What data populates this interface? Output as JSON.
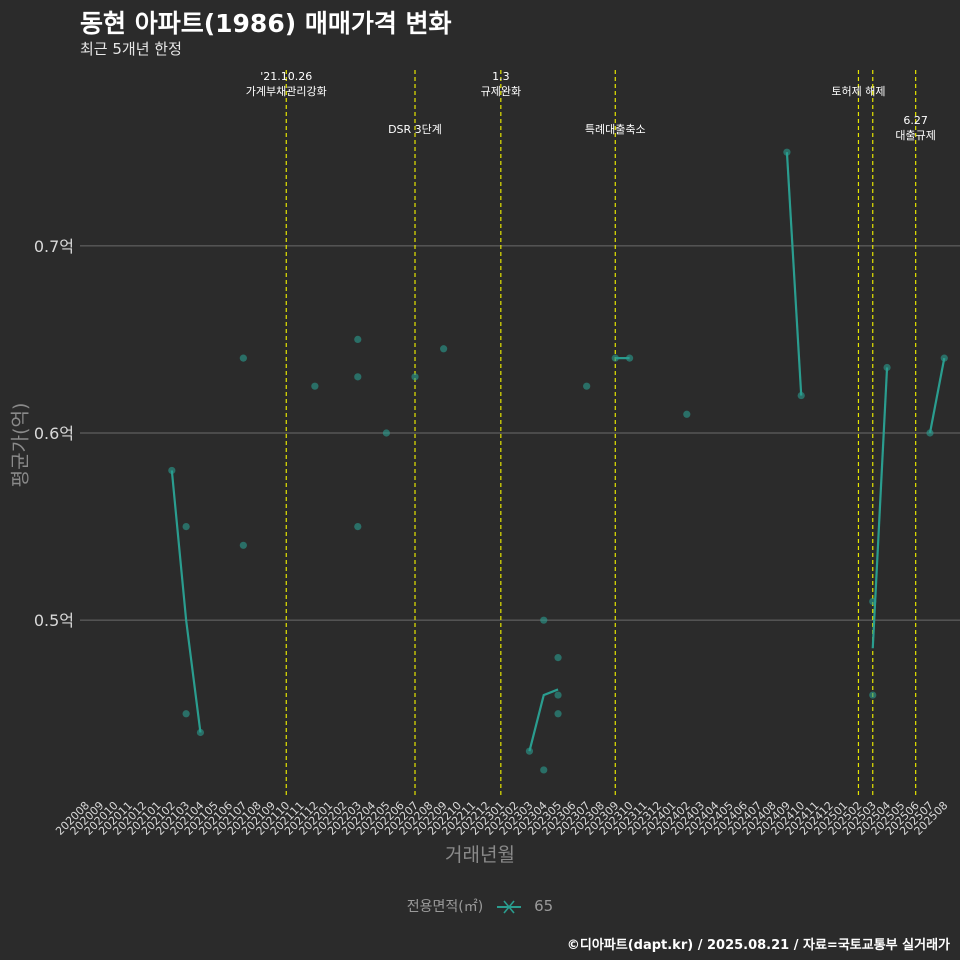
{
  "title": "동현 아파트(1986) 매매가격 변화",
  "subtitle": "최근 5개년 한정",
  "caption": "©디아파트(dapt.kr) / 2025.08.21 / 자료=국토교통부 실거래가",
  "colors": {
    "background": "#2b2b2b",
    "grid": "#6b6b6b",
    "series": "#2a9d8f",
    "event_line": "#e6e600"
  },
  "chart_data": {
    "type": "line",
    "title": "동현 아파트(1986) 매매가격 변화",
    "subtitle": "최근 5개년 한정",
    "xlabel": "거래년월",
    "ylabel": "평균가(억)",
    "ylim": [
      0.405,
      0.795
    ],
    "grid": true,
    "legend_title": "전용면적(㎡)",
    "legend_placement": "bottom",
    "categories": [
      "202008",
      "202009",
      "202010",
      "202011",
      "202012",
      "202101",
      "202102",
      "202103",
      "202104",
      "202105",
      "202106",
      "202107",
      "202108",
      "202109",
      "202110",
      "202111",
      "202112",
      "202201",
      "202202",
      "202203",
      "202204",
      "202205",
      "202206",
      "202207",
      "202208",
      "202209",
      "202210",
      "202211",
      "202212",
      "202301",
      "202302",
      "202303",
      "202304",
      "202305",
      "202306",
      "202307",
      "202308",
      "202309",
      "202310",
      "202311",
      "202312",
      "202401",
      "202402",
      "202403",
      "202404",
      "202405",
      "202406",
      "202407",
      "202408",
      "202409",
      "202410",
      "202411",
      "202412",
      "202501",
      "202502",
      "202503",
      "202504",
      "202505",
      "202506",
      "202507",
      "202508"
    ],
    "yticks": [
      0.5,
      0.6,
      0.7
    ],
    "ytick_labels": [
      "0.5억",
      "0.6억",
      "0.7억"
    ],
    "series": [
      {
        "name": "65",
        "points": [
          {
            "x": "202102",
            "y": 0.58
          },
          {
            "x": "202103",
            "y": 0.55
          },
          {
            "x": "202103",
            "y": 0.45
          },
          {
            "x": "202104",
            "y": 0.44
          },
          {
            "x": "202107",
            "y": 0.64
          },
          {
            "x": "202107",
            "y": 0.54
          },
          {
            "x": "202112",
            "y": 0.625
          },
          {
            "x": "202203",
            "y": 0.65
          },
          {
            "x": "202203",
            "y": 0.63
          },
          {
            "x": "202203",
            "y": 0.55
          },
          {
            "x": "202205",
            "y": 0.6
          },
          {
            "x": "202207",
            "y": 0.63
          },
          {
            "x": "202209",
            "y": 0.645
          },
          {
            "x": "202303",
            "y": 0.43
          },
          {
            "x": "202304",
            "y": 0.5
          },
          {
            "x": "202304",
            "y": 0.42
          },
          {
            "x": "202305",
            "y": 0.48
          },
          {
            "x": "202305",
            "y": 0.46
          },
          {
            "x": "202305",
            "y": 0.45
          },
          {
            "x": "202307",
            "y": 0.625
          },
          {
            "x": "202309",
            "y": 0.64
          },
          {
            "x": "202310",
            "y": 0.64
          },
          {
            "x": "202402",
            "y": 0.61
          },
          {
            "x": "202409",
            "y": 0.75
          },
          {
            "x": "202410",
            "y": 0.62
          },
          {
            "x": "202503",
            "y": 0.51
          },
          {
            "x": "202503",
            "y": 0.46
          },
          {
            "x": "202504",
            "y": 0.635
          },
          {
            "x": "202507",
            "y": 0.6
          },
          {
            "x": "202508",
            "y": 0.64
          }
        ],
        "mean_line": [
          {
            "x": "202102",
            "y": 0.58
          },
          {
            "x": "202103",
            "y": 0.5
          },
          {
            "x": "202104",
            "y": 0.44
          },
          {
            "x": "202303",
            "y": 0.43
          },
          {
            "x": "202304",
            "y": 0.46
          },
          {
            "x": "202305",
            "y": 0.463
          },
          {
            "x": "202309",
            "y": 0.64
          },
          {
            "x": "202310",
            "y": 0.64
          },
          {
            "x": "202409",
            "y": 0.75
          },
          {
            "x": "202410",
            "y": 0.62
          },
          {
            "x": "202503",
            "y": 0.485
          },
          {
            "x": "202504",
            "y": 0.635
          },
          {
            "x": "202507",
            "y": 0.6
          },
          {
            "x": "202508",
            "y": 0.64
          }
        ]
      }
    ],
    "events": [
      {
        "x": "202110",
        "label": [
          "'21.10.26",
          "가계부채관리강화"
        ],
        "row": 0
      },
      {
        "x": "202207",
        "label": [
          "DSR 3단계"
        ],
        "row": 1
      },
      {
        "x": "202301",
        "label": [
          "1.3",
          "규제완화"
        ],
        "row": 0
      },
      {
        "x": "202309",
        "label": [
          "특례대출축소"
        ],
        "row": 1
      },
      {
        "x": "202502",
        "label": [
          "토허제 해제"
        ],
        "row": 0
      },
      {
        "x": "202503",
        "label": [],
        "row": 0
      },
      {
        "x": "202506",
        "label": [
          "6.27",
          "대출규제"
        ],
        "row": 1
      }
    ]
  }
}
